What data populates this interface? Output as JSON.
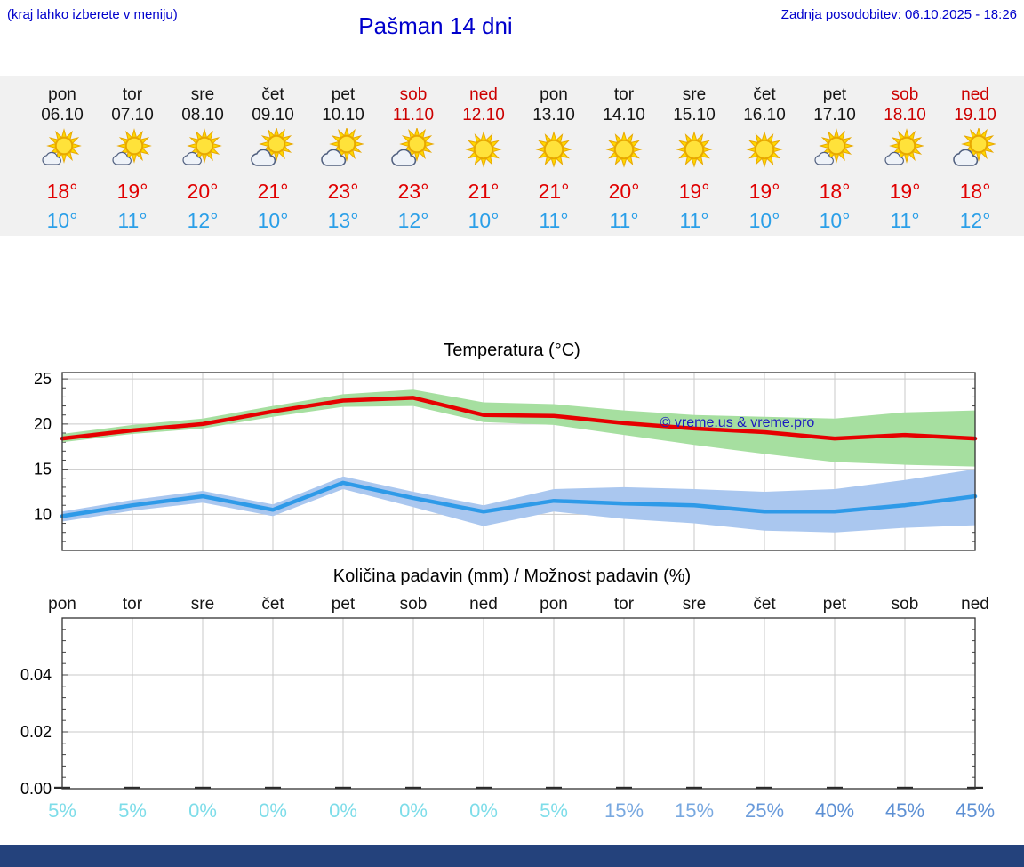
{
  "header": {
    "hint": "(kraj lahko izberete v meniju)",
    "title": "Pašman 14 dni",
    "last_update": "Zadnja posodobitev: 06.10.2025 - 18:26"
  },
  "colors": {
    "header_blue": "#0000cc",
    "high_red": "#e00000",
    "low_blue": "#2b9fe8",
    "weekend_red": "#cc0000",
    "strip_bg": "#f1f1f1",
    "footer_bar": "#24427c",
    "max_line": "#e60000",
    "max_band": "#a6dfa0",
    "min_line": "#2e9ae8",
    "min_band": "#aac7ef"
  },
  "forecast": {
    "days": [
      {
        "day": "pon",
        "date": "06.10",
        "weekend": false,
        "icon": "sun-small-cloud",
        "high": "18°",
        "low": "10°"
      },
      {
        "day": "tor",
        "date": "07.10",
        "weekend": false,
        "icon": "sun-small-cloud",
        "high": "19°",
        "low": "11°"
      },
      {
        "day": "sre",
        "date": "08.10",
        "weekend": false,
        "icon": "sun-small-cloud",
        "high": "20°",
        "low": "12°"
      },
      {
        "day": "čet",
        "date": "09.10",
        "weekend": false,
        "icon": "sun-cloud",
        "high": "21°",
        "low": "10°"
      },
      {
        "day": "pet",
        "date": "10.10",
        "weekend": false,
        "icon": "sun-cloud",
        "high": "23°",
        "low": "13°"
      },
      {
        "day": "sob",
        "date": "11.10",
        "weekend": true,
        "icon": "sun-cloud",
        "high": "23°",
        "low": "12°"
      },
      {
        "day": "ned",
        "date": "12.10",
        "weekend": true,
        "icon": "sun",
        "high": "21°",
        "low": "10°"
      },
      {
        "day": "pon",
        "date": "13.10",
        "weekend": false,
        "icon": "sun",
        "high": "21°",
        "low": "11°"
      },
      {
        "day": "tor",
        "date": "14.10",
        "weekend": false,
        "icon": "sun",
        "high": "20°",
        "low": "11°"
      },
      {
        "day": "sre",
        "date": "15.10",
        "weekend": false,
        "icon": "sun",
        "high": "19°",
        "low": "11°"
      },
      {
        "day": "čet",
        "date": "16.10",
        "weekend": false,
        "icon": "sun",
        "high": "19°",
        "low": "10°"
      },
      {
        "day": "pet",
        "date": "17.10",
        "weekend": false,
        "icon": "sun-small-cloud",
        "high": "18°",
        "low": "10°"
      },
      {
        "day": "sob",
        "date": "18.10",
        "weekend": true,
        "icon": "sun-small-cloud",
        "high": "19°",
        "low": "11°"
      },
      {
        "day": "ned",
        "date": "19.10",
        "weekend": true,
        "icon": "sun-cloud",
        "high": "18°",
        "low": "12°"
      }
    ]
  },
  "chart_data": [
    {
      "type": "line",
      "title": "Temperatura (°C)",
      "categories": [
        "pon",
        "tor",
        "sre",
        "čet",
        "pet",
        "sob",
        "ned",
        "pon",
        "tor",
        "sre",
        "čet",
        "pet",
        "sob",
        "ned"
      ],
      "ylim": [
        6,
        25.7
      ],
      "yticks": [
        10,
        15,
        20,
        25
      ],
      "grid": true,
      "legend_position": "none",
      "watermark": "© vreme.us & vreme.pro",
      "series": [
        {
          "name": "max temperature",
          "color": "#e60000",
          "values": [
            18.4,
            19.3,
            20.0,
            21.4,
            22.6,
            22.9,
            21.0,
            20.9,
            20.1,
            19.5,
            19.1,
            18.4,
            18.8,
            18.4
          ],
          "band": {
            "color": "#a6dfa0",
            "upper": [
              18.9,
              19.9,
              20.6,
              22.0,
              23.3,
              23.8,
              22.4,
              22.2,
              21.5,
              21.0,
              20.8,
              20.6,
              21.3,
              21.5
            ],
            "lower": [
              18.0,
              18.9,
              19.5,
              20.8,
              21.9,
              22.0,
              20.2,
              19.9,
              18.8,
              17.7,
              16.7,
              15.8,
              15.5,
              15.3
            ]
          }
        },
        {
          "name": "min temperature",
          "color": "#2e9ae8",
          "values": [
            9.8,
            11.0,
            12.0,
            10.5,
            13.5,
            11.8,
            10.3,
            11.5,
            11.2,
            11.0,
            10.3,
            10.3,
            11.0,
            12.0
          ],
          "band": {
            "color": "#aac7ef",
            "upper": [
              10.3,
              11.6,
              12.6,
              11.1,
              14.2,
              12.5,
              11.0,
              12.8,
              13.0,
              12.8,
              12.5,
              12.8,
              13.8,
              15.0
            ],
            "lower": [
              9.2,
              10.4,
              11.3,
              9.8,
              12.8,
              10.8,
              8.7,
              10.3,
              9.5,
              9.0,
              8.2,
              8.0,
              8.5,
              8.8
            ]
          }
        }
      ]
    },
    {
      "type": "bar",
      "title": "Količina padavin (mm) / Možnost padavin (%)",
      "categories": [
        "pon",
        "tor",
        "sre",
        "čet",
        "pet",
        "sob",
        "ned",
        "pon",
        "tor",
        "sre",
        "čet",
        "pet",
        "sob",
        "ned"
      ],
      "ylim": [
        0,
        0.06
      ],
      "yticks": [
        0,
        0.02,
        0.04
      ],
      "grid": true,
      "values": [
        0,
        0,
        0,
        0,
        0,
        0,
        0,
        0,
        0,
        0,
        0,
        0,
        0,
        0
      ],
      "probabilities": [
        {
          "label": "5%",
          "color": "#7edde9"
        },
        {
          "label": "5%",
          "color": "#7edde9"
        },
        {
          "label": "0%",
          "color": "#7edde9"
        },
        {
          "label": "0%",
          "color": "#7edde9"
        },
        {
          "label": "0%",
          "color": "#7edde9"
        },
        {
          "label": "0%",
          "color": "#7edde9"
        },
        {
          "label": "0%",
          "color": "#7edde9"
        },
        {
          "label": "5%",
          "color": "#7edde9"
        },
        {
          "label": "15%",
          "color": "#78a8e0"
        },
        {
          "label": "15%",
          "color": "#78a8e0"
        },
        {
          "label": "25%",
          "color": "#6a9bdb"
        },
        {
          "label": "40%",
          "color": "#5d90d4"
        },
        {
          "label": "45%",
          "color": "#5d90d4"
        },
        {
          "label": "45%",
          "color": "#5d90d4"
        }
      ]
    }
  ]
}
